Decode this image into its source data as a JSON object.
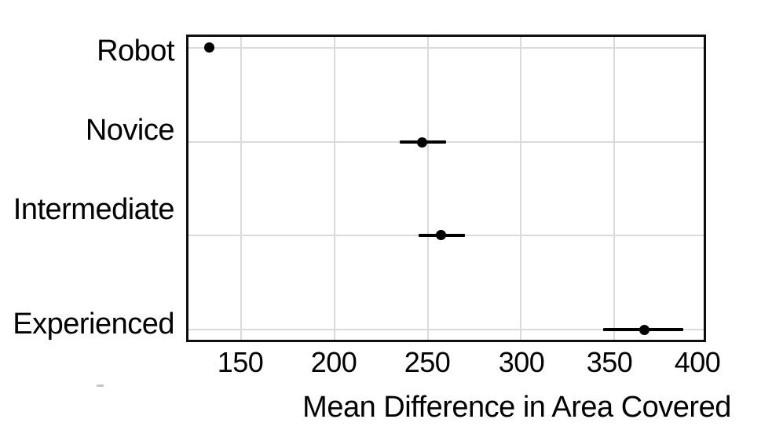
{
  "figure": {
    "background_color": "#ffffff"
  },
  "chart_data": {
    "type": "scatter",
    "subtype": "dot-plot-with-horizontal-error-bars",
    "orientation": "horizontal",
    "title": "",
    "xlabel": "Mean Difference in Area Covered",
    "ylabel": "",
    "categories": [
      "Robot",
      "Novice",
      "Intermediate",
      "Experienced"
    ],
    "series": [
      {
        "name": "mean-difference",
        "points": [
          {
            "category": "Robot",
            "value": 133,
            "ci_low": null,
            "ci_high": null
          },
          {
            "category": "Novice",
            "value": 247,
            "ci_low": 235,
            "ci_high": 260
          },
          {
            "category": "Intermediate",
            "value": 257,
            "ci_low": 245,
            "ci_high": 270
          },
          {
            "category": "Experienced",
            "value": 366,
            "ci_low": 344,
            "ci_high": 387
          }
        ]
      }
    ],
    "x_ticks": [
      150,
      200,
      250,
      300,
      350,
      400
    ],
    "xlim": [
      120.5,
      400
    ],
    "grid": true,
    "legend_position": "none",
    "colors": {
      "point": "#000000",
      "error_bar": "#000000",
      "grid": "#dadada",
      "frame": "#0f0f0f",
      "text": "#000000",
      "background": "#ffffff"
    }
  }
}
